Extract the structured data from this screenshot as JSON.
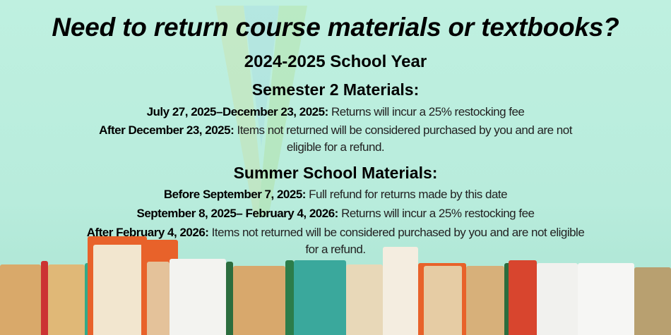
{
  "title": "Need to return course materials or textbooks?",
  "school_year": "2024-2025 School Year",
  "semester2": {
    "heading": "Semester 2 Materials:",
    "items": [
      {
        "date": "July 27, 2025–December 23, 2025:",
        "text": "Returns will incur a 25% restocking fee"
      },
      {
        "date": "After December 23, 2025:",
        "text": "Items not returned will be considered purchased by you and are not",
        "text2": "eligible for a refund."
      }
    ]
  },
  "summer": {
    "heading": "Summer School Materials:",
    "items": [
      {
        "date": "Before September 7, 2025:",
        "text": "Full refund for returns made by this date"
      },
      {
        "date": "September 8, 2025– February 4, 2026:",
        "text": "Returns will incur a 25% restocking fee"
      },
      {
        "date": "After February 4, 2026:",
        "text": "Items not returned will be considered purchased by you and are not eligible",
        "text2": "for a refund."
      }
    ]
  },
  "colors": {
    "background": "#bff0e0",
    "accent": "#e8622a"
  }
}
